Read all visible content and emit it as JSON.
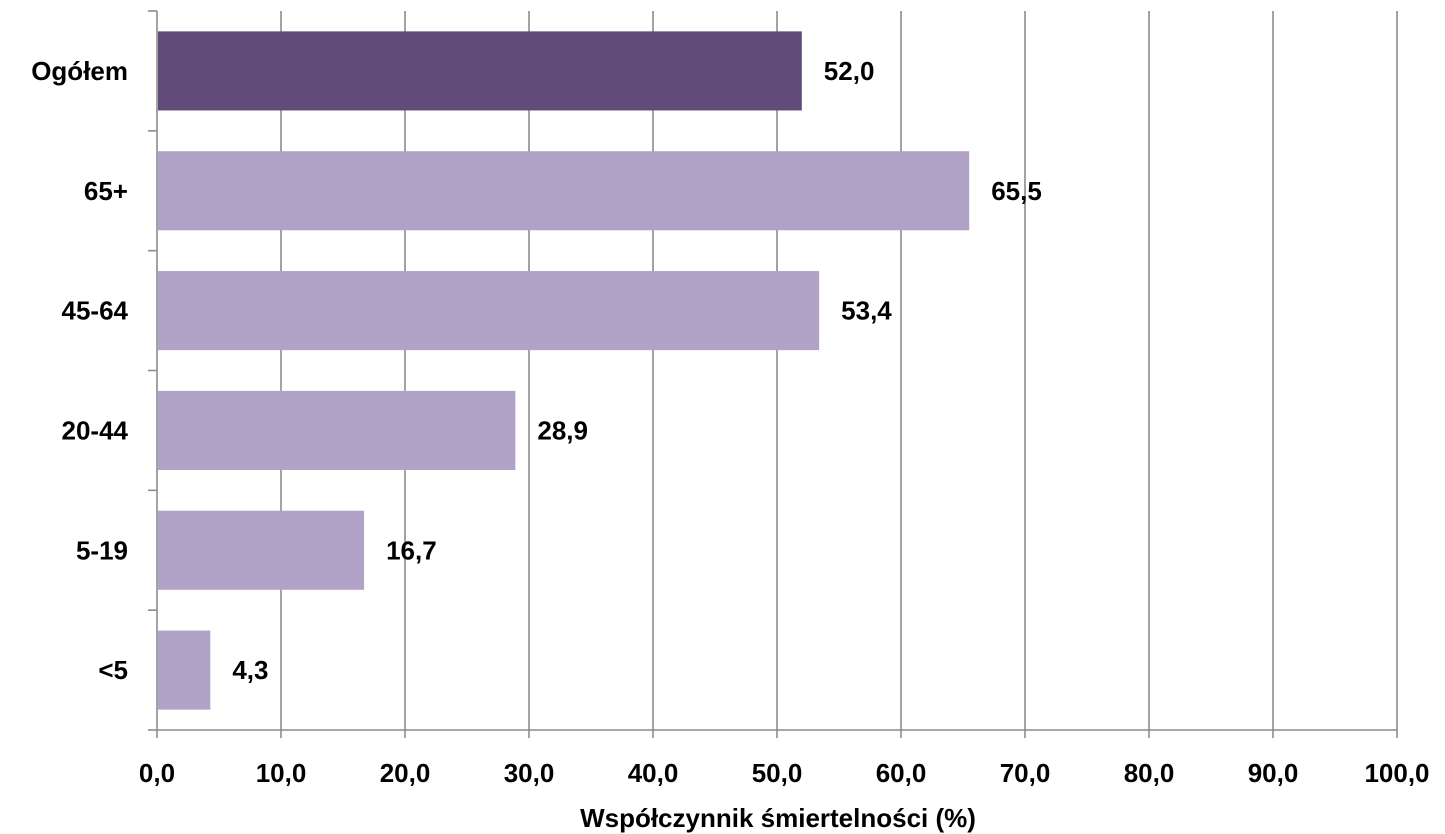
{
  "chart_data": {
    "type": "bar",
    "orientation": "horizontal",
    "categories": [
      "Ogółem",
      "65+",
      "45-64",
      "20-44",
      "5-19",
      "<5"
    ],
    "values": [
      52.0,
      65.5,
      53.4,
      28.9,
      16.7,
      4.3
    ],
    "data_labels": [
      "52,0",
      "65,5",
      "53,4",
      "28,9",
      "16,7",
      "4,3"
    ],
    "xlabel": "Współczynnik śmiertelności (%)",
    "ylabel": "",
    "xlim": [
      0,
      100
    ],
    "x_ticks": [
      0,
      10,
      20,
      30,
      40,
      50,
      60,
      70,
      80,
      90,
      100
    ],
    "x_tick_labels": [
      "0,0",
      "10,0",
      "20,0",
      "30,0",
      "40,0",
      "50,0",
      "60,0",
      "70,0",
      "80,0",
      "90,0",
      "100,0"
    ],
    "grid": "vertical",
    "legend": "none",
    "colors": {
      "highlight": "#614b7b",
      "default": "#b1a2c8",
      "grid": "#8c8c8c",
      "text": "#000000"
    },
    "bar_color_keys": [
      "highlight",
      "default",
      "default",
      "default",
      "default",
      "default"
    ]
  }
}
